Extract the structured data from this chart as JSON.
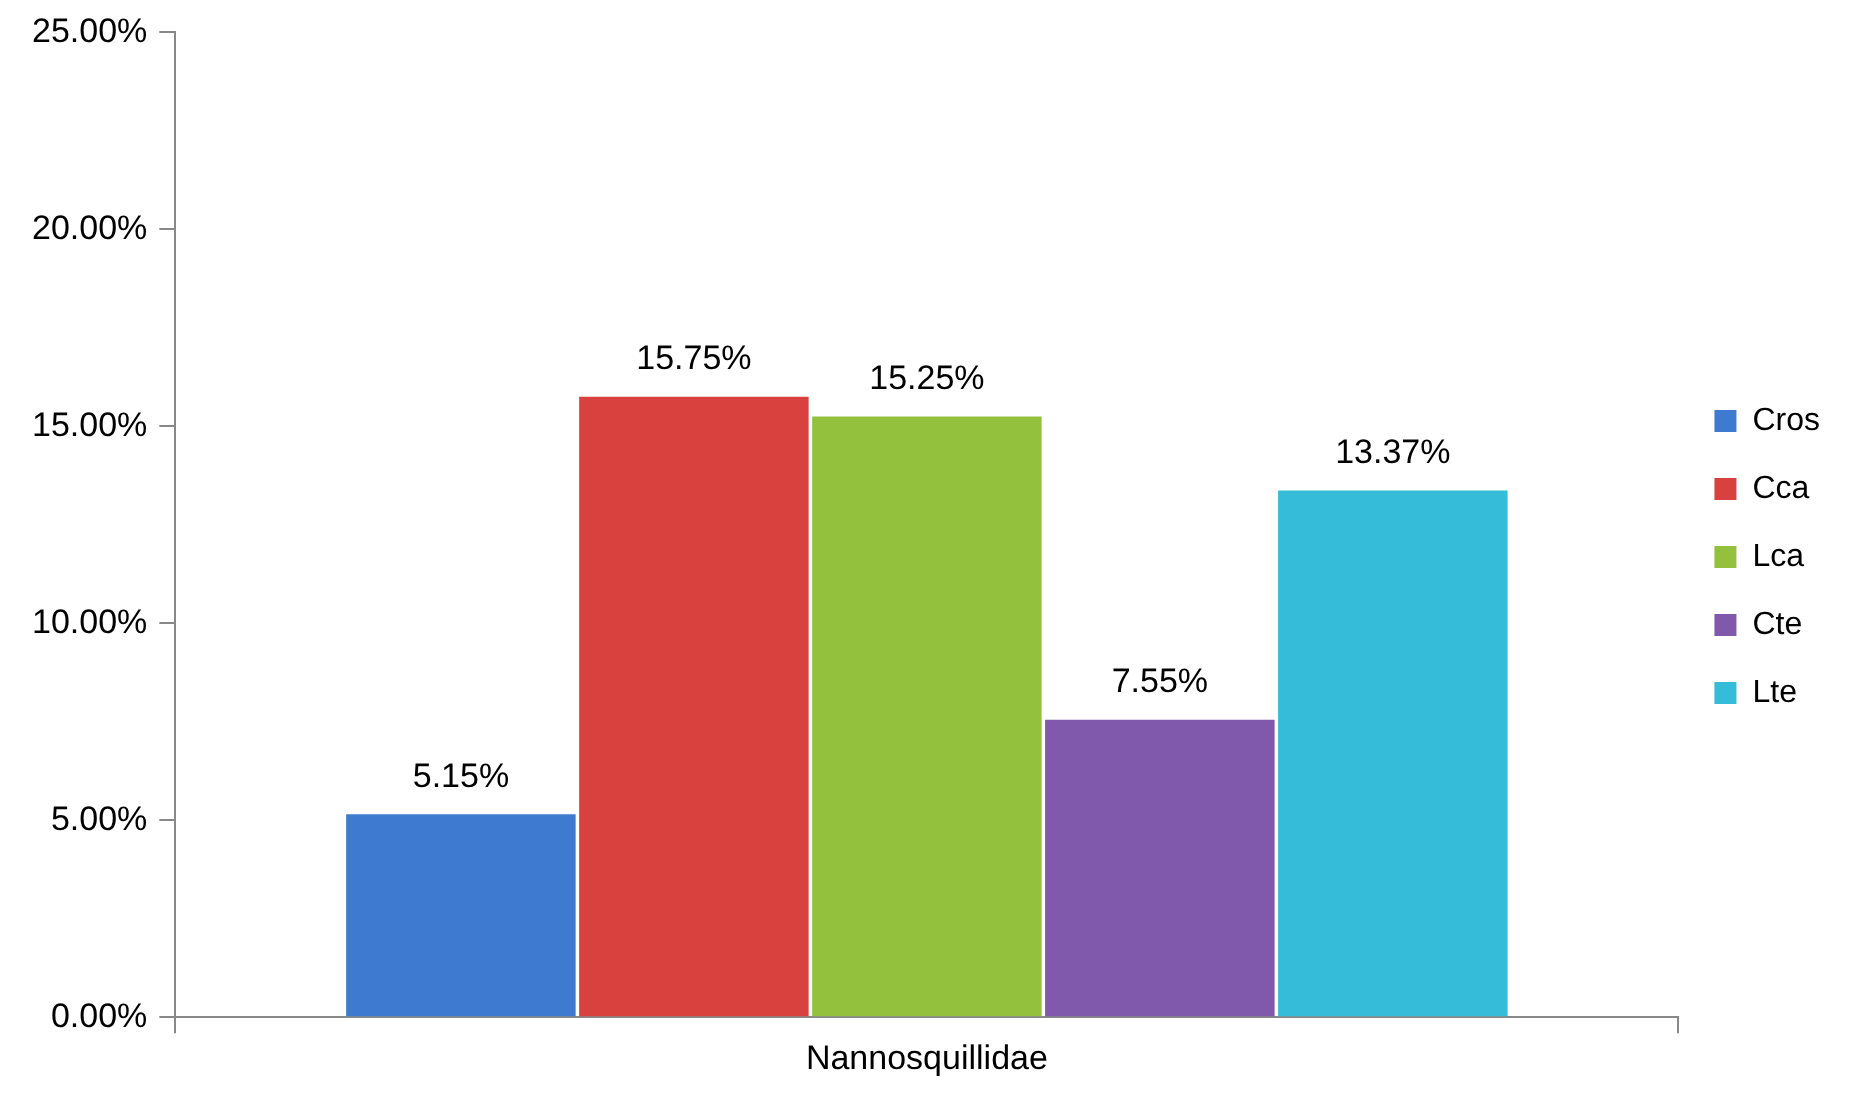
{
  "chart_data": {
    "type": "bar",
    "categories": [
      "Nannosquillidae"
    ],
    "series": [
      {
        "name": "Cros",
        "color": "#3e7bd0",
        "values": [
          5.15
        ],
        "value_labels": [
          "5.15%"
        ]
      },
      {
        "name": "Cca",
        "color": "#d9413e",
        "values": [
          15.75
        ],
        "value_labels": [
          "15.75%"
        ]
      },
      {
        "name": "Lca",
        "color": "#93c13e",
        "values": [
          15.25
        ],
        "value_labels": [
          "15.25%"
        ]
      },
      {
        "name": "Cte",
        "color": "#8059ad",
        "values": [
          7.55
        ],
        "value_labels": [
          "7.55%"
        ]
      },
      {
        "name": "Lte",
        "color": "#34bcd8",
        "values": [
          13.37
        ],
        "value_labels": [
          "13.37%"
        ]
      }
    ],
    "ylim": [
      0,
      25
    ],
    "yticks": [
      {
        "value": 0,
        "label": "0.00%"
      },
      {
        "value": 5,
        "label": "5.00%"
      },
      {
        "value": 10,
        "label": "10.00%"
      },
      {
        "value": 15,
        "label": "15.00%"
      },
      {
        "value": 20,
        "label": "20.00%"
      },
      {
        "value": 25,
        "label": "25.00%"
      }
    ],
    "grid": false,
    "legend": "right"
  }
}
